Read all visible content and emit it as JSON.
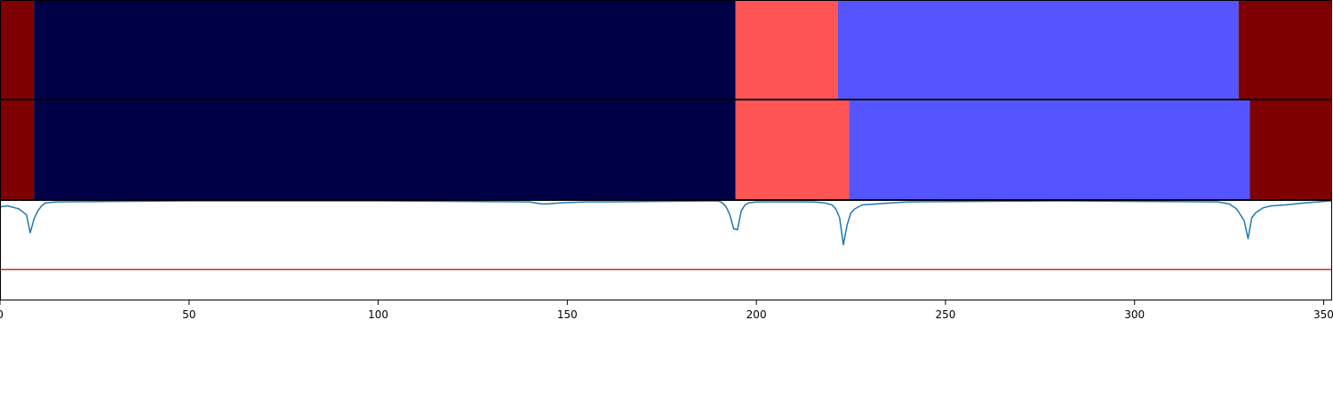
{
  "chart_data": [
    {
      "type": "heatmap",
      "title": "",
      "xlabel": "",
      "ylabel": "",
      "xlim": [
        0,
        352
      ],
      "segments": [
        {
          "start": 0,
          "end": 9,
          "color": "#7f0000"
        },
        {
          "start": 9,
          "end": 194.5,
          "color": "#000047"
        },
        {
          "start": 194.5,
          "end": 221.5,
          "color": "#ff5555"
        },
        {
          "start": 221.5,
          "end": 327.5,
          "color": "#5555ff"
        },
        {
          "start": 327.5,
          "end": 352,
          "color": "#7f0000"
        }
      ]
    },
    {
      "type": "heatmap",
      "title": "",
      "xlabel": "",
      "ylabel": "",
      "xlim": [
        0,
        352
      ],
      "segments": [
        {
          "start": 0,
          "end": 9,
          "color": "#7f0000"
        },
        {
          "start": 9,
          "end": 194.5,
          "color": "#000047"
        },
        {
          "start": 194.5,
          "end": 224.5,
          "color": "#ff5555"
        },
        {
          "start": 224.5,
          "end": 330.5,
          "color": "#5555ff"
        },
        {
          "start": 330.5,
          "end": 352,
          "color": "#7f0000"
        }
      ]
    },
    {
      "type": "line",
      "title": "",
      "xlabel": "",
      "ylabel": "",
      "xlim": [
        0,
        352
      ],
      "ylim": [
        0,
        1
      ],
      "threshold": 0.31,
      "threshold_color": "#d62728",
      "series": [
        {
          "color": "#1f77b4",
          "x": [
            0,
            2,
            4,
            5,
            6,
            7,
            8,
            9,
            10,
            11,
            12,
            15,
            50,
            100,
            140,
            143,
            145,
            148,
            155,
            160,
            190,
            191,
            192,
            193,
            194,
            195,
            196,
            197,
            198,
            200,
            215,
            218,
            220,
            221,
            222,
            223,
            224,
            225,
            226,
            228,
            240,
            280,
            322,
            325,
            327,
            329,
            330,
            331,
            332,
            334,
            336,
            340,
            345,
            352
          ],
          "y": [
            0.94,
            0.95,
            0.93,
            0.92,
            0.89,
            0.86,
            0.68,
            0.82,
            0.9,
            0.95,
            0.98,
            0.99,
            1.0,
            1.0,
            0.99,
            0.97,
            0.97,
            0.98,
            0.99,
            0.99,
            1.0,
            0.98,
            0.94,
            0.86,
            0.72,
            0.71,
            0.9,
            0.96,
            0.98,
            0.99,
            0.99,
            0.98,
            0.96,
            0.92,
            0.83,
            0.56,
            0.76,
            0.88,
            0.92,
            0.96,
            0.99,
            1.0,
            0.99,
            0.97,
            0.92,
            0.8,
            0.62,
            0.83,
            0.88,
            0.93,
            0.95,
            0.96,
            0.98,
            1.0
          ]
        }
      ]
    }
  ],
  "axis": {
    "ticks": [
      0,
      50,
      100,
      150,
      200,
      250,
      300,
      350
    ],
    "tick_labels": [
      "0",
      "50",
      "100",
      "150",
      "200",
      "250",
      "300",
      "350"
    ]
  }
}
